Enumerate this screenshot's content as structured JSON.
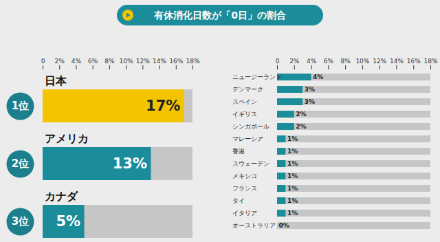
{
  "title": "有休消化日数が「0日」の割合",
  "chart_data": [
    {
      "type": "bar",
      "orientation": "horizontal",
      "categories": [
        "日本",
        "アメリカ",
        "カナダ"
      ],
      "values": [
        17,
        13,
        5
      ],
      "value_labels": [
        "17%",
        "13%",
        "5%"
      ],
      "annotations": [
        "1位",
        "2位",
        "3位"
      ],
      "colors": [
        "#f5c400",
        "#1b8c99",
        "#1b8c99"
      ],
      "data_labels": true,
      "xlim": [
        0,
        18
      ],
      "xticks": [
        0,
        {
          "value": 2,
          "label": "2%"
        },
        {
          "value": 4,
          "label": "4%"
        },
        {
          "value": 6,
          "label": "6%"
        },
        {
          "value": 8,
          "label": "8%"
        },
        {
          "value": 10,
          "label": "10%"
        },
        {
          "value": 12,
          "label": "12%"
        },
        {
          "value": 14,
          "label": "14%"
        },
        {
          "value": 16,
          "label": "16%"
        },
        {
          "value": 18,
          "label": "18%"
        }
      ]
    },
    {
      "type": "bar",
      "orientation": "horizontal",
      "categories": [
        "ニュージーランド",
        "デンマーク",
        "スペイン",
        "イギリス",
        "シンガポール",
        "マレーシア",
        "香港",
        "スウェーデン",
        "メキシコ",
        "フランス",
        "タイ",
        "イタリア",
        "オーストラリア"
      ],
      "values": [
        4,
        3,
        3,
        2,
        2,
        1,
        1,
        1,
        1,
        1,
        1,
        1,
        0
      ],
      "value_labels": [
        "4%",
        "3%",
        "3%",
        "2%",
        "2%",
        "1%",
        "1%",
        "1%",
        "1%",
        "1%",
        "1%",
        "1%",
        "0%"
      ],
      "color": "#1b8c99",
      "data_labels": true,
      "xlim": [
        0,
        18
      ],
      "xticks": [
        0,
        {
          "value": 2,
          "label": "2%"
        },
        {
          "value": 4,
          "label": "4%"
        },
        {
          "value": 6,
          "label": "6%"
        },
        {
          "value": 8,
          "label": "8%"
        },
        {
          "value": 10,
          "label": "10%"
        },
        {
          "value": 12,
          "label": "12%"
        },
        {
          "value": 14,
          "label": "14%"
        },
        {
          "value": 16,
          "label": "16%"
        },
        {
          "value": 18,
          "label": "18%"
        }
      ]
    }
  ]
}
